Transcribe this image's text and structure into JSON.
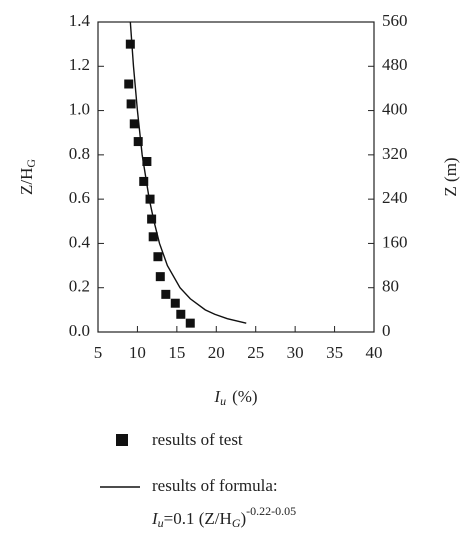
{
  "chart_data": {
    "type": "scatter",
    "y_label": "Z/H",
    "y_label_sub": "G",
    "y2_label": "Z (m)",
    "x_label": "I",
    "x_label_sub": "u",
    "x_label_unit": "(%)",
    "xlim": [
      5,
      40
    ],
    "xticks": [
      5,
      10,
      15,
      20,
      25,
      30,
      35,
      40
    ],
    "ylim": [
      0,
      1.4
    ],
    "yticks": [
      {
        "value": 0,
        "label": "0.0"
      },
      0.2,
      0.4,
      0.6,
      0.8,
      {
        "value": 1,
        "label": "1.0"
      },
      1.2,
      1.4
    ],
    "y2lim": [
      0,
      560
    ],
    "y2ticks": [
      0,
      80,
      160,
      240,
      320,
      400,
      480,
      560
    ],
    "series": [
      {
        "name": "results of test",
        "type": "scatter",
        "color": "#111111",
        "x": [
          9.1,
          8.9,
          9.2,
          9.6,
          10.1,
          11.2,
          10.8,
          11.6,
          11.8,
          12.0,
          12.6,
          12.9,
          13.6,
          14.8,
          15.5,
          16.7
        ],
        "values": [
          1.3,
          1.12,
          1.03,
          0.94,
          0.86,
          0.77,
          0.68,
          0.6,
          0.51,
          0.43,
          0.34,
          0.25,
          0.17,
          0.13,
          0.08,
          0.04
        ]
      },
      {
        "name": "results of formula:",
        "type": "line",
        "color": "#111111",
        "x": [
          23.8,
          21.4,
          19.8,
          18.6,
          16.7,
          15.4,
          13.8,
          12.8,
          12.1,
          11.5,
          10.6,
          10.0,
          9.5,
          9.1
        ],
        "values": [
          0.04,
          0.06,
          0.08,
          0.1,
          0.15,
          0.2,
          0.3,
          0.4,
          0.5,
          0.6,
          0.8,
          1.0,
          1.2,
          1.4
        ]
      }
    ],
    "legend_formula": {
      "lhs": "I",
      "lhs_sub": "u",
      "rhs": "=0.1 (Z/H",
      "rhs_sub": "G",
      "close": ")",
      "exponent": "-0.22-0.05"
    }
  }
}
